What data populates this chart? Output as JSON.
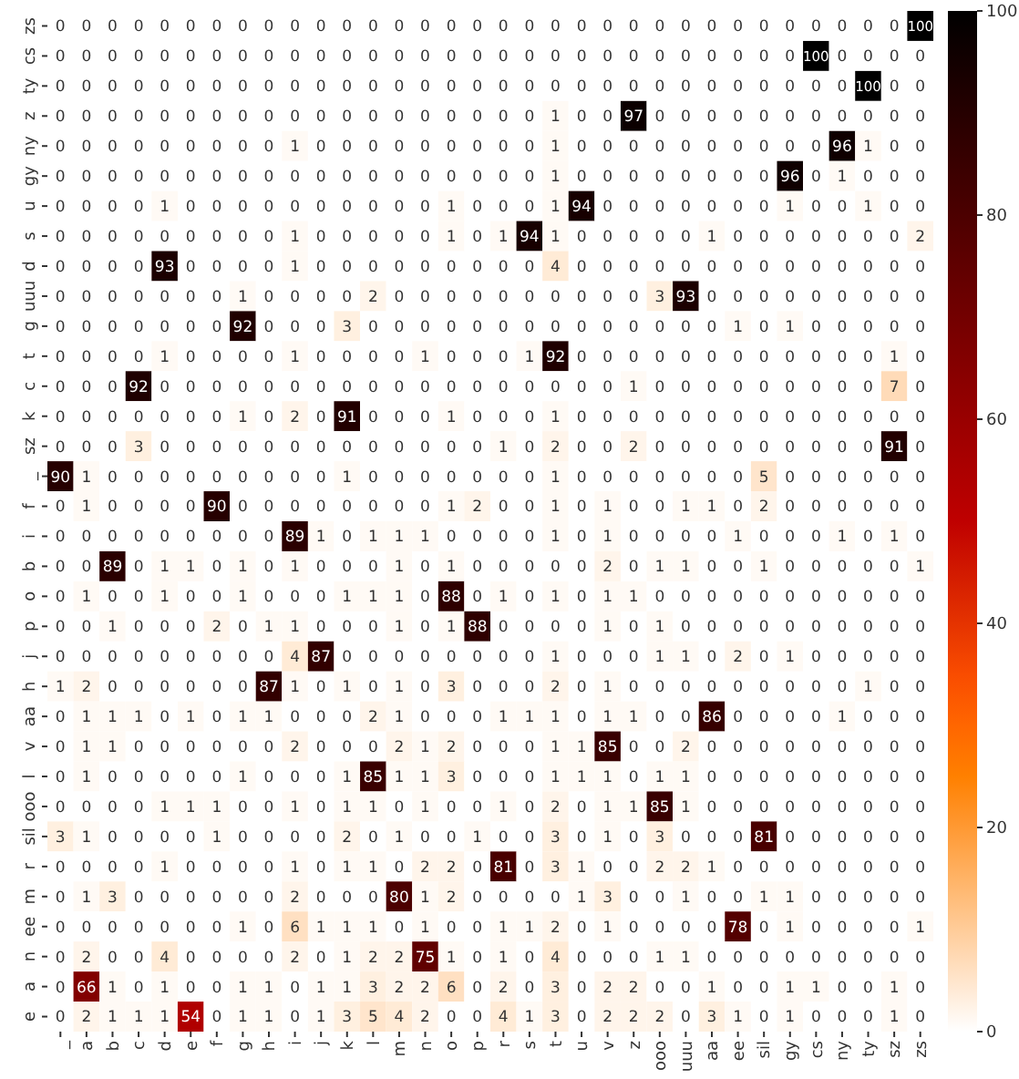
{
  "chart_data": {
    "type": "heatmap",
    "categories": [
      "_",
      "a",
      "b",
      "c",
      "d",
      "e",
      "f",
      "g",
      "h",
      "i",
      "j",
      "k",
      "l",
      "m",
      "n",
      "o",
      "p",
      "r",
      "s",
      "t",
      "u",
      "v",
      "z",
      "ooo",
      "uuu",
      "aa",
      "ee",
      "sil",
      "gy",
      "cs",
      "ny",
      "ty",
      "sz",
      "zs"
    ],
    "y_categories": [
      "zs",
      "cs",
      "ty",
      "z",
      "ny",
      "gy",
      "u",
      "s",
      "d",
      "uuu",
      "g",
      "t",
      "c",
      "k",
      "sz",
      "_",
      "f",
      "i",
      "b",
      "o",
      "p",
      "j",
      "h",
      "aa",
      "v",
      "l",
      "ooo",
      "sil",
      "r",
      "m",
      "ee",
      "n",
      "a",
      "e"
    ],
    "cells": [
      [
        0,
        0,
        0,
        0,
        0,
        0,
        0,
        0,
        0,
        0,
        0,
        0,
        0,
        0,
        0,
        0,
        0,
        0,
        0,
        0,
        0,
        0,
        0,
        0,
        0,
        0,
        0,
        0,
        0,
        0,
        0,
        0,
        0,
        100
      ],
      [
        0,
        0,
        0,
        0,
        0,
        0,
        0,
        0,
        0,
        0,
        0,
        0,
        0,
        0,
        0,
        0,
        0,
        0,
        0,
        0,
        0,
        0,
        0,
        0,
        0,
        0,
        0,
        0,
        0,
        100,
        0,
        0,
        0,
        0
      ],
      [
        0,
        0,
        0,
        0,
        0,
        0,
        0,
        0,
        0,
        0,
        0,
        0,
        0,
        0,
        0,
        0,
        0,
        0,
        0,
        0,
        0,
        0,
        0,
        0,
        0,
        0,
        0,
        0,
        0,
        0,
        0,
        100,
        0,
        0
      ],
      [
        0,
        0,
        0,
        0,
        0,
        0,
        0,
        0,
        0,
        0,
        0,
        0,
        0,
        0,
        0,
        0,
        0,
        0,
        0,
        1,
        0,
        0,
        97,
        0,
        0,
        0,
        0,
        0,
        0,
        0,
        0,
        0,
        0,
        0
      ],
      [
        0,
        0,
        0,
        0,
        0,
        0,
        0,
        0,
        0,
        1,
        0,
        0,
        0,
        0,
        0,
        0,
        0,
        0,
        0,
        1,
        0,
        0,
        0,
        0,
        0,
        0,
        0,
        0,
        0,
        0,
        96,
        1,
        0,
        0
      ],
      [
        0,
        0,
        0,
        0,
        0,
        0,
        0,
        0,
        0,
        0,
        0,
        0,
        0,
        0,
        0,
        0,
        0,
        0,
        0,
        1,
        0,
        0,
        0,
        0,
        0,
        0,
        0,
        0,
        96,
        0,
        1,
        0,
        0,
        0
      ],
      [
        0,
        0,
        0,
        0,
        1,
        0,
        0,
        0,
        0,
        0,
        0,
        0,
        0,
        0,
        0,
        1,
        0,
        0,
        0,
        1,
        94,
        0,
        0,
        0,
        0,
        0,
        0,
        0,
        1,
        0,
        0,
        1,
        0,
        0
      ],
      [
        0,
        0,
        0,
        0,
        0,
        0,
        0,
        0,
        0,
        1,
        0,
        0,
        0,
        0,
        0,
        1,
        0,
        1,
        94,
        1,
        0,
        0,
        0,
        0,
        0,
        1,
        0,
        0,
        0,
        0,
        0,
        0,
        0,
        2
      ],
      [
        0,
        0,
        0,
        0,
        93,
        0,
        0,
        0,
        0,
        1,
        0,
        0,
        0,
        0,
        0,
        0,
        0,
        0,
        0,
        4,
        0,
        0,
        0,
        0,
        0,
        0,
        0,
        0,
        0,
        0,
        0,
        0,
        0,
        0
      ],
      [
        0,
        0,
        0,
        0,
        0,
        0,
        0,
        1,
        0,
        0,
        0,
        0,
        2,
        0,
        0,
        0,
        0,
        0,
        0,
        0,
        0,
        0,
        0,
        3,
        93,
        0,
        0,
        0,
        0,
        0,
        0,
        0,
        0,
        0
      ],
      [
        0,
        0,
        0,
        0,
        0,
        0,
        0,
        92,
        0,
        0,
        0,
        3,
        0,
        0,
        0,
        0,
        0,
        0,
        0,
        0,
        0,
        0,
        0,
        0,
        0,
        0,
        1,
        0,
        1,
        0,
        0,
        0,
        0,
        0
      ],
      [
        0,
        0,
        0,
        0,
        1,
        0,
        0,
        0,
        0,
        1,
        0,
        0,
        0,
        0,
        1,
        0,
        0,
        0,
        1,
        92,
        0,
        0,
        0,
        0,
        0,
        0,
        0,
        0,
        0,
        0,
        0,
        0,
        1,
        0
      ],
      [
        0,
        0,
        0,
        92,
        0,
        0,
        0,
        0,
        0,
        0,
        0,
        0,
        0,
        0,
        0,
        0,
        0,
        0,
        0,
        0,
        0,
        0,
        1,
        0,
        0,
        0,
        0,
        0,
        0,
        0,
        0,
        0,
        7,
        0
      ],
      [
        0,
        0,
        0,
        0,
        0,
        0,
        0,
        1,
        0,
        2,
        0,
        91,
        0,
        0,
        0,
        1,
        0,
        0,
        0,
        1,
        0,
        0,
        0,
        0,
        0,
        0,
        0,
        0,
        0,
        0,
        0,
        0,
        0,
        0
      ],
      [
        0,
        0,
        0,
        3,
        0,
        0,
        0,
        0,
        0,
        0,
        0,
        0,
        0,
        0,
        0,
        0,
        0,
        1,
        0,
        2,
        0,
        0,
        2,
        0,
        0,
        0,
        0,
        0,
        0,
        0,
        0,
        0,
        91,
        0
      ],
      [
        90,
        1,
        0,
        0,
        0,
        0,
        0,
        0,
        0,
        0,
        0,
        1,
        0,
        0,
        0,
        0,
        0,
        0,
        0,
        1,
        0,
        0,
        0,
        0,
        0,
        0,
        0,
        5,
        0,
        0,
        0,
        0,
        0,
        0
      ],
      [
        0,
        1,
        0,
        0,
        0,
        0,
        90,
        0,
        0,
        0,
        0,
        0,
        0,
        0,
        0,
        1,
        2,
        0,
        0,
        1,
        0,
        1,
        0,
        0,
        1,
        1,
        0,
        2,
        0,
        0,
        0,
        0,
        0,
        0
      ],
      [
        0,
        0,
        0,
        0,
        0,
        0,
        0,
        0,
        0,
        89,
        1,
        0,
        1,
        1,
        1,
        0,
        0,
        0,
        0,
        1,
        0,
        1,
        0,
        0,
        0,
        0,
        1,
        0,
        0,
        0,
        1,
        0,
        1,
        0
      ],
      [
        0,
        0,
        89,
        0,
        1,
        1,
        0,
        1,
        0,
        1,
        0,
        0,
        0,
        1,
        0,
        1,
        0,
        0,
        0,
        0,
        0,
        2,
        0,
        1,
        1,
        0,
        0,
        1,
        0,
        0,
        0,
        0,
        0,
        1
      ],
      [
        0,
        1,
        0,
        0,
        1,
        0,
        0,
        1,
        0,
        0,
        0,
        1,
        1,
        1,
        0,
        88,
        0,
        1,
        0,
        1,
        0,
        1,
        1,
        0,
        0,
        0,
        0,
        0,
        0,
        0,
        0,
        0,
        0,
        0
      ],
      [
        0,
        0,
        1,
        0,
        0,
        0,
        2,
        0,
        1,
        1,
        0,
        0,
        0,
        1,
        0,
        1,
        88,
        0,
        0,
        0,
        0,
        1,
        0,
        1,
        0,
        0,
        0,
        0,
        0,
        0,
        0,
        0,
        0,
        0
      ],
      [
        0,
        0,
        0,
        0,
        0,
        0,
        0,
        0,
        0,
        4,
        87,
        0,
        0,
        0,
        0,
        0,
        0,
        0,
        0,
        1,
        0,
        0,
        0,
        1,
        1,
        0,
        2,
        0,
        1,
        0,
        0,
        0,
        0,
        0
      ],
      [
        1,
        2,
        0,
        0,
        0,
        0,
        0,
        0,
        87,
        1,
        0,
        1,
        0,
        1,
        0,
        3,
        0,
        0,
        0,
        2,
        0,
        1,
        0,
        0,
        0,
        0,
        0,
        0,
        0,
        0,
        0,
        1,
        0,
        0
      ],
      [
        0,
        1,
        1,
        1,
        0,
        1,
        0,
        1,
        1,
        0,
        0,
        0,
        2,
        1,
        0,
        0,
        0,
        1,
        1,
        1,
        0,
        1,
        1,
        0,
        0,
        86,
        0,
        0,
        0,
        0,
        1,
        0,
        0,
        0
      ],
      [
        0,
        1,
        1,
        0,
        0,
        0,
        0,
        0,
        0,
        2,
        0,
        0,
        0,
        2,
        1,
        2,
        0,
        0,
        0,
        1,
        1,
        85,
        0,
        0,
        2,
        0,
        0,
        0,
        0,
        0,
        0,
        0,
        0,
        0
      ],
      [
        0,
        1,
        0,
        0,
        0,
        0,
        0,
        1,
        0,
        0,
        0,
        1,
        85,
        1,
        1,
        3,
        0,
        0,
        0,
        1,
        1,
        1,
        0,
        1,
        1,
        0,
        0,
        0,
        0,
        0,
        0,
        0,
        0,
        0
      ],
      [
        0,
        0,
        0,
        0,
        1,
        1,
        1,
        0,
        0,
        1,
        0,
        1,
        1,
        0,
        1,
        0,
        0,
        1,
        0,
        2,
        0,
        1,
        1,
        85,
        1,
        0,
        0,
        0,
        0,
        0,
        0,
        0,
        0,
        0
      ],
      [
        3,
        1,
        0,
        0,
        0,
        0,
        1,
        0,
        0,
        0,
        0,
        2,
        0,
        1,
        0,
        0,
        1,
        0,
        0,
        3,
        0,
        1,
        0,
        3,
        0,
        0,
        0,
        81,
        0,
        0,
        0,
        0,
        0,
        0
      ],
      [
        0,
        0,
        0,
        0,
        1,
        0,
        0,
        0,
        0,
        1,
        0,
        1,
        1,
        0,
        2,
        2,
        0,
        81,
        0,
        3,
        1,
        0,
        0,
        2,
        2,
        1,
        0,
        0,
        0,
        0,
        0,
        0,
        0,
        0
      ],
      [
        0,
        1,
        3,
        0,
        0,
        0,
        0,
        0,
        0,
        2,
        0,
        0,
        0,
        80,
        1,
        2,
        0,
        0,
        0,
        0,
        1,
        3,
        0,
        0,
        1,
        0,
        0,
        1,
        1,
        0,
        0,
        0,
        0,
        0
      ],
      [
        0,
        0,
        0,
        0,
        0,
        0,
        0,
        1,
        0,
        6,
        1,
        1,
        1,
        0,
        1,
        0,
        0,
        1,
        1,
        2,
        0,
        1,
        0,
        0,
        0,
        0,
        78,
        0,
        1,
        0,
        0,
        0,
        0,
        1
      ],
      [
        0,
        2,
        0,
        0,
        4,
        0,
        0,
        0,
        0,
        2,
        0,
        1,
        2,
        2,
        75,
        1,
        0,
        1,
        0,
        4,
        0,
        0,
        0,
        1,
        1,
        0,
        0,
        0,
        0,
        0,
        0,
        0,
        0,
        0
      ],
      [
        0,
        66,
        1,
        0,
        1,
        0,
        0,
        1,
        1,
        0,
        1,
        1,
        3,
        2,
        2,
        6,
        0,
        2,
        0,
        3,
        0,
        2,
        2,
        0,
        0,
        1,
        0,
        0,
        1,
        1,
        0,
        0,
        1,
        0
      ],
      [
        0,
        2,
        1,
        1,
        1,
        54,
        0,
        1,
        1,
        0,
        1,
        3,
        5,
        4,
        2,
        0,
        0,
        4,
        1,
        3,
        0,
        2,
        2,
        2,
        0,
        3,
        1,
        0,
        1,
        0,
        0,
        0,
        1,
        0
      ]
    ],
    "clim": [
      0,
      100
    ],
    "cticks": [
      0,
      20,
      40,
      60,
      80,
      100
    ],
    "data_labels": true
  }
}
